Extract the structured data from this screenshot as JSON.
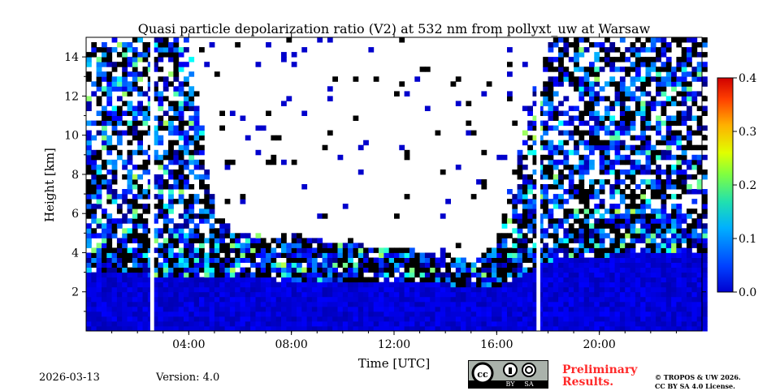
{
  "chart_data": {
    "type": "heatmap",
    "title": "Quasi particle depolarization ratio (V2) at 532 nm from pollyxt_uw at Warsaw",
    "xlabel": "Time [UTC]",
    "ylabel": "Height [km]",
    "xlim_hours": [
      0,
      24
    ],
    "ylim_km": [
      0,
      15
    ],
    "xticks": [
      {
        "v": 4,
        "label": "04:00"
      },
      {
        "v": 8,
        "label": "08:00"
      },
      {
        "v": 12,
        "label": "12:00"
      },
      {
        "v": 16,
        "label": "16:00"
      },
      {
        "v": 20,
        "label": "20:00"
      }
    ],
    "yticks": [
      {
        "v": 2,
        "label": "2"
      },
      {
        "v": 4,
        "label": "4"
      },
      {
        "v": 6,
        "label": "6"
      },
      {
        "v": 8,
        "label": "8"
      },
      {
        "v": 10,
        "label": "10"
      },
      {
        "v": 12,
        "label": "12"
      },
      {
        "v": 14,
        "label": "14"
      }
    ],
    "colorbar": {
      "min": 0.0,
      "max": 0.4,
      "ticks": [
        {
          "v": 0.0,
          "label": "0.0"
        },
        {
          "v": 0.1,
          "label": "0.1"
        },
        {
          "v": 0.2,
          "label": "0.2"
        },
        {
          "v": 0.3,
          "label": "0.3"
        },
        {
          "v": 0.4,
          "label": "0.4"
        }
      ],
      "colormap": "jet"
    },
    "data_gaps_hours": [
      [
        2.5,
        2.65
      ],
      [
        17.55,
        17.7
      ]
    ],
    "boundary_layer_top_km": {
      "hours": [
        0,
        2,
        4,
        6,
        8,
        10,
        12,
        14,
        16,
        18,
        20,
        22,
        24
      ],
      "km": [
        3.0,
        2.9,
        2.8,
        2.7,
        2.6,
        2.5,
        2.4,
        2.4,
        2.2,
        3.6,
        3.8,
        4.0,
        4.0
      ]
    },
    "signal_top_km": {
      "hours": [
        0,
        1,
        2,
        3,
        4,
        5,
        6,
        8,
        10,
        12,
        14,
        15,
        16,
        17,
        18,
        20,
        24
      ],
      "km": [
        15,
        15,
        15,
        15,
        15,
        6,
        5,
        5,
        4.5,
        4.2,
        4,
        3.5,
        4.5,
        10,
        15,
        15,
        15
      ]
    },
    "typical_depol": {
      "boundary_layer": 0.02,
      "aloft": 0.05
    }
  },
  "footer": {
    "date": "2026-03-13",
    "version": "Version: 4.0",
    "preliminary": [
      "Preliminary",
      "Results."
    ],
    "copyright": [
      "© TROPOS & UW 2026.",
      "CC BY SA 4.0 License."
    ],
    "license_badge": [
      "cc",
      "BY",
      "SA"
    ]
  }
}
